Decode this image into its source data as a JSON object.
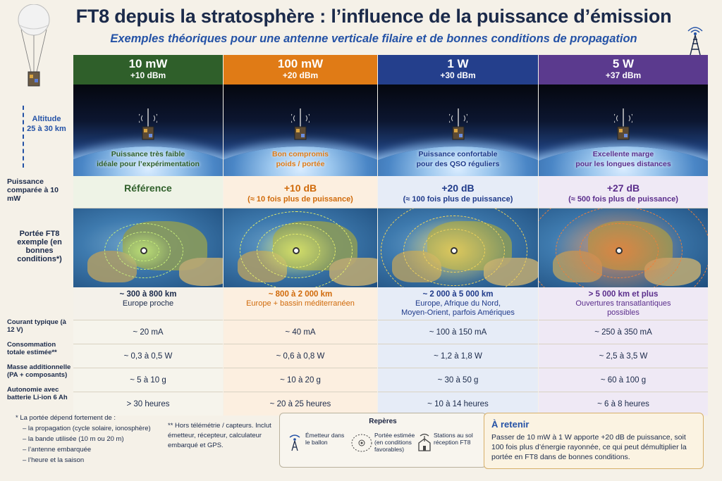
{
  "title": "FT8 depuis la stratosphère : l’influence de la puissance d’émission",
  "subtitle": "Exemples théoriques pour une antenne verticale filaire et de bonnes conditions de propagation",
  "altitude": {
    "label": "Altitude",
    "value": "25 à 30 km"
  },
  "row_labels": {
    "compare": "Puissance comparée à 10 mW",
    "range": "Portée FT8 exemple (en bonnes conditions*)",
    "current": "Courant typique (à 12 V)",
    "consumption": "Consommation totale estimée**",
    "mass": "Masse additionnelle (PA + composants)",
    "autonomy": "Autonomie avec batterie Li-ion 6 Ah"
  },
  "columns": [
    {
      "power": "10 mW",
      "dbm": "+10 dBm",
      "color": "#2f5f2a",
      "tint": "#eef3e6",
      "text_color": "#2f5f2a",
      "caption1": "Puissance très faible",
      "caption2": "idéale pour l’expérimentation",
      "compare_big": "Référence",
      "compare_small": "",
      "range1": "~ 300 à 800 km",
      "range2": "Europe proche",
      "range3": "",
      "current": "~ 20 mA",
      "consumption": "~ 0,3 à 0,5 W",
      "mass": "~ 5 à 10 g",
      "autonomy": "> 30 heures",
      "glow": "#c8f07a"
    },
    {
      "power": "100 mW",
      "dbm": "+20 dBm",
      "color": "#e07b16",
      "tint": "#fcefe0",
      "text_color": "#d06a0a",
      "caption1": "Bon compromis",
      "caption2": "poids / portée",
      "compare_big": "+10 dB",
      "compare_small": "(≈ 10 fois plus de puissance)",
      "range1": "~ 800 à 2 000 km",
      "range2": "Europe + bassin méditerranéen",
      "range3": "",
      "current": "~ 40 mA",
      "consumption": "~ 0,6 à 0,8 W",
      "mass": "~ 10 à 20 g",
      "autonomy": "~ 20 à 25 heures",
      "glow": "#e6ef6a"
    },
    {
      "power": "1 W",
      "dbm": "+30 dBm",
      "color": "#243f8c",
      "tint": "#e6ecf7",
      "text_color": "#1f3a8a",
      "caption1": "Puissance confortable",
      "caption2": "pour des QSO réguliers",
      "compare_big": "+20 dB",
      "compare_small": "(≈ 100 fois plus de puissance)",
      "range1": "~ 2 000 à 5 000 km",
      "range2": "Europe, Afrique du Nord,",
      "range3": "Moyen-Orient, parfois Amériques",
      "current": "~ 100 à 150 mA",
      "consumption": "~ 1,2 à 1,8 W",
      "mass": "~ 30 à 50 g",
      "autonomy": "~ 10 à 14 heures",
      "glow": "#f2d35a"
    },
    {
      "power": "5 W",
      "dbm": "+37 dBm",
      "color": "#5b3a8e",
      "tint": "#efe9f5",
      "text_color": "#5b2e8c",
      "caption1": "Excellente marge",
      "caption2": "pour les longues distances",
      "compare_big": "+27 dB",
      "compare_small": "(≈ 500 fois plus de puissance)",
      "range1": "> 5 000 km et plus",
      "range2": "Ouvertures transatlantiques",
      "range3": "possibles",
      "current": "~ 250 à 350 mA",
      "consumption": "~ 2,5 à 3,5 W",
      "mass": "~ 60 à 100 g",
      "autonomy": "~ 6 à 8 heures",
      "glow": "#f0803a"
    }
  ],
  "notes": {
    "n1": "* La portée dépend fortement de :",
    "n1a": "– la propagation (cycle solaire, ionosphère)",
    "n1b": "– la bande utilisée (10 m ou 20 m)",
    "n1c": "– l’antenne embarquée",
    "n1d": "– l’heure et la saison",
    "n2": "** Hors télémétrie / capteurs. Inclut émetteur, récepteur, calculateur embarqué et GPS."
  },
  "legend": {
    "title": "Repères",
    "item1": "Émetteur dans le ballon",
    "item2": "Portée estimée (en conditions favorables)",
    "item3": "Stations au sol réception FT8"
  },
  "retenir": {
    "title": "À retenir",
    "body": "Passer de 10 mW à 1 W apporte +20 dB de puissance, soit 100 fois plus d’énergie rayonnée, ce qui peut démultiplier la portée en FT8 dans de bonnes conditions."
  }
}
